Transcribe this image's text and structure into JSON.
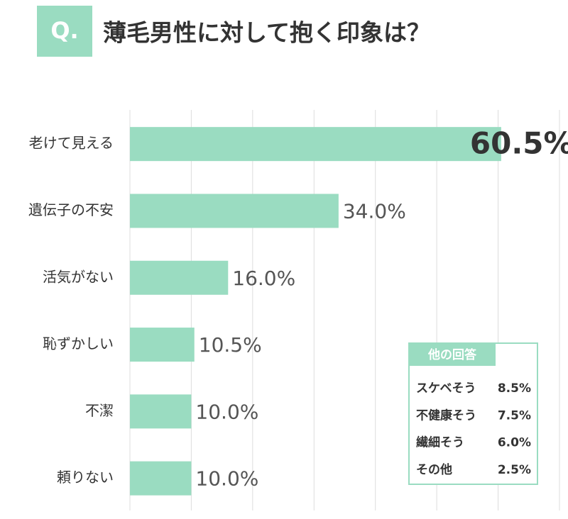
{
  "chart_data": {
    "type": "hbar",
    "title_badge": "Q.",
    "title": "薄毛男性に対して抱く印象は？",
    "categories": [
      "老けて見える",
      "遺伝子の不安",
      "活気がない",
      "恥ずかしい",
      "不潔",
      "頼りない"
    ],
    "values": [
      60.5,
      34.0,
      16.0,
      10.5,
      10.0,
      10.0
    ],
    "value_labels": [
      "60.5%",
      "34.0%",
      "16.0%",
      "10.5%",
      "10.0%",
      "10.0%"
    ],
    "color": "#9adcc1",
    "xlim": [
      0,
      70
    ],
    "xticks": [
      0,
      10,
      20,
      30,
      40,
      50,
      60,
      70
    ],
    "grid": true
  },
  "other_answers": {
    "title": "他の回答",
    "rows": [
      {
        "label": "スケベそう",
        "value": "8.5%"
      },
      {
        "label": "不健康そう",
        "value": "7.5%"
      },
      {
        "label": "繊細そう",
        "value": "6.0%"
      },
      {
        "label": "その他",
        "value": "2.5%"
      }
    ]
  }
}
